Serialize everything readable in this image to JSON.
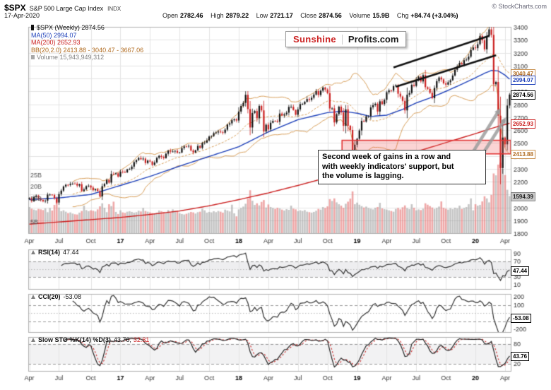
{
  "header": {
    "symbol": "$SPX",
    "name": "S&P 500 Large Cap Index",
    "exchange": "INDX",
    "copyright": "© StockCharts.com",
    "date": "17-Apr-2020",
    "quote": [
      {
        "label": "Open",
        "value": "2782.46"
      },
      {
        "label": "High",
        "value": "2879.22"
      },
      {
        "label": "Low",
        "value": "2721.17"
      },
      {
        "label": "Close",
        "value": "2874.56"
      },
      {
        "label": "Volume",
        "value": "15.9B"
      },
      {
        "label": "Chg",
        "value": "+84.74 (+3.04%)"
      }
    ]
  },
  "legend": {
    "main": "$SPX (Weekly) 2874.56",
    "ma50": "MA(50) 2994.07",
    "ma200": "MA(200) 2652.93",
    "bb": "BB(20,2.0) 2413.88 - 3040.47 - 3667.06",
    "volume": "Volume 15,943,949,312"
  },
  "logo": {
    "part1": "Sunshine",
    "part2": "Profits.com"
  },
  "panels": {
    "rsi": {
      "label": "RSI(14)",
      "value": "47.44"
    },
    "cci": {
      "label": "CCI(20)",
      "value": "-53.08"
    },
    "sto": {
      "label": "Slow STO %K(14) %D(3)",
      "value_k": "43.76,",
      "value_d": "32.31"
    }
  },
  "tags": {
    "bb_mid": "3040.47",
    "ma50": "2994.07",
    "close": "2874.56",
    "ma200": "2652.93",
    "bb_lower": "2413.88",
    "volume": "1594.39",
    "rsi": "47.44",
    "cci": "-53.08",
    "sto": "43.76"
  },
  "colors": {
    "up": "#111111",
    "down": "#cc2020",
    "ma50": "#2244bb",
    "ma200": "#cc2222",
    "bb": "#d9a05b",
    "volume_up": "rgba(150,150,150,0.55)",
    "volume_down": "rgba(228,110,110,0.6)",
    "grid": "#e4e4e4",
    "zone_fill": "rgba(242,100,100,0.28)",
    "zone_stroke": "#e23535",
    "arrow": "#9e9e9e",
    "channel": "#111111"
  },
  "chart_data": {
    "type": "candlestick",
    "symbol": "$SPX",
    "timeframe": "Weekly",
    "title": "$SPX S&P 500 Large Cap Index (Weekly)",
    "as_of": "17-Apr-2020",
    "x_start": "Apr-2016",
    "x_end": "17-Apr-2020",
    "ylim": [
      1800,
      3400
    ],
    "price_axis": {
      "min": 1800,
      "max": 3400,
      "step": 100
    },
    "volume_axis": {
      "ticks": [
        25,
        20,
        15,
        5
      ],
      "unit": "B"
    },
    "x_ticks": [
      {
        "l": "Apr",
        "i": 0
      },
      {
        "l": "Jul",
        "i": 13
      },
      {
        "l": "Oct",
        "i": 27
      },
      {
        "l": "17",
        "i": 40,
        "b": 1
      },
      {
        "l": "Apr",
        "i": 53
      },
      {
        "l": "Jul",
        "i": 66
      },
      {
        "l": "Oct",
        "i": 79
      },
      {
        "l": "18",
        "i": 92,
        "b": 1
      },
      {
        "l": "Apr",
        "i": 105
      },
      {
        "l": "Jul",
        "i": 118
      },
      {
        "l": "Oct",
        "i": 131
      },
      {
        "l": "19",
        "i": 144,
        "b": 1
      },
      {
        "l": "Apr",
        "i": 157
      },
      {
        "l": "Jul",
        "i": 170
      },
      {
        "l": "Oct",
        "i": 183
      },
      {
        "l": "20",
        "i": 196,
        "b": 1
      },
      {
        "l": "Apr",
        "i": 209
      }
    ],
    "closes": [
      2072.78,
      2047.6,
      2080.73,
      2091.58,
      2065.3,
      2057.14,
      2046.61,
      2052.32,
      2099.06,
      2099.13,
      2096.07,
      2071.22,
      2037.41,
      2102.95,
      2129.9,
      2161.74,
      2175.03,
      2173.6,
      2182.87,
      2184.05,
      2183.87,
      2169.04,
      2179.98,
      2127.81,
      2139.16,
      2164.69,
      2168.27,
      2153.74,
      2132.98,
      2141.16,
      2126.41,
      2085.18,
      2164.45,
      2181.9,
      2213.35,
      2191.95,
      2259.53,
      2258.07,
      2263.79,
      2238.83,
      2276.98,
      2274.64,
      2271.31,
      2294.69,
      2297.42,
      2316.1,
      2351.16,
      2367.34,
      2383.12,
      2372.6,
      2378.25,
      2343.98,
      2362.72,
      2355.54,
      2328.95,
      2348.69,
      2384.2,
      2399.29,
      2390.9,
      2381.73,
      2415.82,
      2439.07,
      2431.77,
      2433.15,
      2438.3,
      2423.41,
      2425.18,
      2459.27,
      2472.54,
      2472.1,
      2476.83,
      2441.32,
      2425.55,
      2443.05,
      2476.55,
      2461.43,
      2500.23,
      2502.22,
      2519.36,
      2549.33,
      2553.17,
      2575.21,
      2581.07,
      2587.84,
      2582.3,
      2578.85,
      2602.42,
      2642.22,
      2651.5,
      2675.81,
      2683.34,
      2673.61,
      2743.15,
      2786.24,
      2810.3,
      2872.87,
      2762.13,
      2619.55,
      2732.22,
      2747.3,
      2691.25,
      2786.57,
      2752.01,
      2588.26,
      2640.87,
      2604.47,
      2656.3,
      2670.14,
      2669.91,
      2663.42,
      2727.72,
      2712.97,
      2721.33,
      2734.62,
      2779.03,
      2779.66,
      2754.88,
      2718.37,
      2759.82,
      2801.31,
      2801.83,
      2818.82,
      2840.35,
      2833.28,
      2850.13,
      2874.69,
      2901.52,
      2871.68,
      2904.98,
      2929.67,
      2913.98,
      2885.57,
      2767.13,
      2767.78,
      2658.69,
      2723.06,
      2781.01,
      2736.27,
      2632.56,
      2760.17,
      2633.08,
      2599.95,
      2416.62,
      2485.74,
      2531.94,
      2596.26,
      2670.71,
      2664.76,
      2706.53,
      2707.88,
      2775.6,
      2792.67,
      2803.69,
      2743.07,
      2822.48,
      2800.71,
      2834.4,
      2892.74,
      2907.41,
      2905.03,
      2939.88,
      2945.64,
      2881.4,
      2859.53,
      2826.06,
      2752.06,
      2873.34,
      2886.98,
      2950.46,
      2941.76,
      2990.41,
      3013.77,
      2976.61,
      3025.86,
      2932.05,
      2918.65,
      2888.68,
      2847.11,
      2926.46,
      2978.71,
      3007.39,
      2992.07,
      2961.79,
      2952.01,
      2970.27,
      2986.2,
      3022.55,
      3066.91,
      3093.08,
      3120.46,
      3110.29,
      3140.98,
      3145.91,
      3168.8,
      3221.22,
      3240.02,
      3234.85,
      3265.35,
      3329.62,
      3295.47,
      3225.52,
      3327.71,
      3380.16,
      3337.75,
      2954.22,
      2972.37,
      2711.02,
      2304.92,
      2541.47,
      2488.65,
      2789.82,
      2874.56
    ],
    "volumes_billions": [
      11.2,
      10.5,
      10.1,
      9.8,
      10.4,
      10.2,
      9.9,
      10.6,
      9.0,
      10.8,
      9.7,
      12.1,
      15.2,
      11.0,
      9.4,
      9.8,
      9.2,
      8.6,
      8.9,
      8.4,
      8.1,
      8.0,
      8.8,
      9.5,
      11.8,
      9.9,
      9.4,
      9.8,
      9.6,
      9.3,
      10.2,
      11.5,
      12.8,
      10.9,
      9.0,
      12.4,
      11.6,
      13.5,
      9.1,
      8.2,
      9.8,
      8.9,
      8.7,
      9.2,
      9.4,
      9.1,
      8.8,
      9.0,
      9.6,
      9.3,
      10.8,
      9.5,
      9.2,
      8.9,
      8.6,
      8.4,
      8.8,
      9.7,
      9.4,
      9.0,
      8.7,
      9.9,
      8.8,
      10.2,
      9.6,
      9.3,
      8.5,
      8.2,
      8.0,
      8.3,
      8.7,
      9.1,
      8.9,
      8.4,
      9.0,
      9.2,
      10.5,
      9.8,
      8.8,
      9.1,
      8.9,
      9.4,
      9.0,
      9.5,
      9.2,
      8.8,
      10.1,
      9.7,
      9.3,
      12.2,
      8.5,
      7.2,
      10.2,
      10.8,
      11.4,
      12.6,
      14.8,
      18.4,
      13.9,
      12.1,
      12.8,
      11.9,
      13.4,
      14.2,
      11.0,
      12.3,
      11.2,
      10.8,
      10.4,
      10.9,
      10.6,
      10.1,
      9.7,
      10.3,
      10.0,
      11.8,
      10.5,
      10.2,
      9.4,
      9.8,
      9.5,
      9.9,
      9.2,
      9.0,
      8.8,
      9.1,
      9.6,
      10.4,
      10.1,
      11.2,
      10.8,
      11.5,
      14.6,
      13.8,
      14.9,
      13.2,
      12.4,
      11.8,
      10.9,
      12.6,
      13.5,
      14.8,
      17.9,
      12.4,
      13.1,
      12.2,
      11.6,
      11.0,
      11.4,
      10.8,
      10.5,
      10.2,
      10.9,
      11.2,
      13.0,
      10.6,
      10.3,
      10.1,
      9.8,
      9.5,
      9.2,
      10.4,
      10.8,
      10.2,
      11.1,
      11.9,
      10.7,
      10.3,
      12.4,
      10.9,
      9.8,
      10.2,
      9.9,
      10.5,
      12.8,
      12.2,
      11.6,
      11.0,
      10.4,
      10.8,
      11.4,
      13.6,
      10.9,
      10.5,
      10.1,
      10.7,
      10.3,
      10.9,
      10.6,
      11.8,
      10.4,
      10.8,
      11.2,
      12.4,
      14.9,
      9.8,
      12.4,
      11.8,
      12.1,
      13.6,
      15.8,
      14.9,
      13.2,
      16.4,
      25.6,
      24.8,
      29.4,
      30.2,
      27.6,
      24.9,
      18.6,
      15.9
    ],
    "overlays": {
      "bb": {
        "period": 20,
        "stdev": 2
      },
      "ma50_anchors": [
        [
          0,
          2060
        ],
        [
          14,
          2075
        ],
        [
          27,
          2100
        ],
        [
          40,
          2170
        ],
        [
          53,
          2240
        ],
        [
          66,
          2320
        ],
        [
          79,
          2395
        ],
        [
          92,
          2470
        ],
        [
          105,
          2585
        ],
        [
          118,
          2680
        ],
        [
          131,
          2735
        ],
        [
          138,
          2745
        ],
        [
          144,
          2730
        ],
        [
          150,
          2705
        ],
        [
          157,
          2715
        ],
        [
          164,
          2760
        ],
        [
          170,
          2810
        ],
        [
          177,
          2855
        ],
        [
          183,
          2900
        ],
        [
          190,
          2955
        ],
        [
          196,
          3005
        ],
        [
          200,
          3040
        ],
        [
          203,
          3062
        ],
        [
          206,
          3058
        ],
        [
          209,
          3025
        ],
        [
          211,
          2994.07
        ]
      ],
      "ma200_anchors": [
        [
          0,
          1870
        ],
        [
          14,
          1888
        ],
        [
          27,
          1905
        ],
        [
          40,
          1922
        ],
        [
          53,
          1945
        ],
        [
          66,
          1972
        ],
        [
          79,
          2012
        ],
        [
          92,
          2060
        ],
        [
          105,
          2112
        ],
        [
          118,
          2170
        ],
        [
          131,
          2232
        ],
        [
          144,
          2300
        ],
        [
          157,
          2368
        ],
        [
          170,
          2432
        ],
        [
          183,
          2502
        ],
        [
          196,
          2572
        ],
        [
          203,
          2612
        ],
        [
          211,
          2652.93
        ]
      ]
    },
    "indicators": {
      "rsi": {
        "period": 14,
        "levels": [
          90,
          70,
          30,
          10
        ]
      },
      "cci": {
        "period": 20,
        "levels": [
          200,
          100,
          -200
        ]
      },
      "sto": {
        "k": 14,
        "d": 3,
        "levels": [
          80,
          20
        ]
      }
    },
    "annotations": {
      "note_lines": [
        "Second week of gains in a row and",
        "with weekly indicators' support, but",
        "the volume is lagging."
      ],
      "support_zone": {
        "i_start": 138,
        "i_end": 212,
        "price_low": 2415,
        "price_high": 2520
      },
      "channel_lines": [
        {
          "from": [
            160,
            3085
          ],
          "to": [
            202,
            3330
          ]
        },
        {
          "from": [
            161,
            2935
          ],
          "to": [
            205,
            3180
          ]
        }
      ],
      "arrows": [
        {
          "from": [
            191,
            2320
          ],
          "to": [
            207,
            2770
          ]
        },
        {
          "from": [
            194,
            2270
          ],
          "to": [
            209.5,
            2700
          ]
        }
      ]
    },
    "current": {
      "open": 2782.46,
      "high": 2879.22,
      "low": 2721.17,
      "close": 2874.56,
      "volume_billions": 15.94,
      "volume_text": "15,943,949,312",
      "chg": "+84.74 (+3.04%)",
      "ma50": 2994.07,
      "ma200": 2652.93,
      "bb_lower": 2413.88,
      "bb_mid": 3040.47,
      "bb_upper": 3667.06,
      "rsi": 47.44,
      "cci": -53.08,
      "sto_k": 43.76,
      "sto_d": 32.31
    }
  }
}
